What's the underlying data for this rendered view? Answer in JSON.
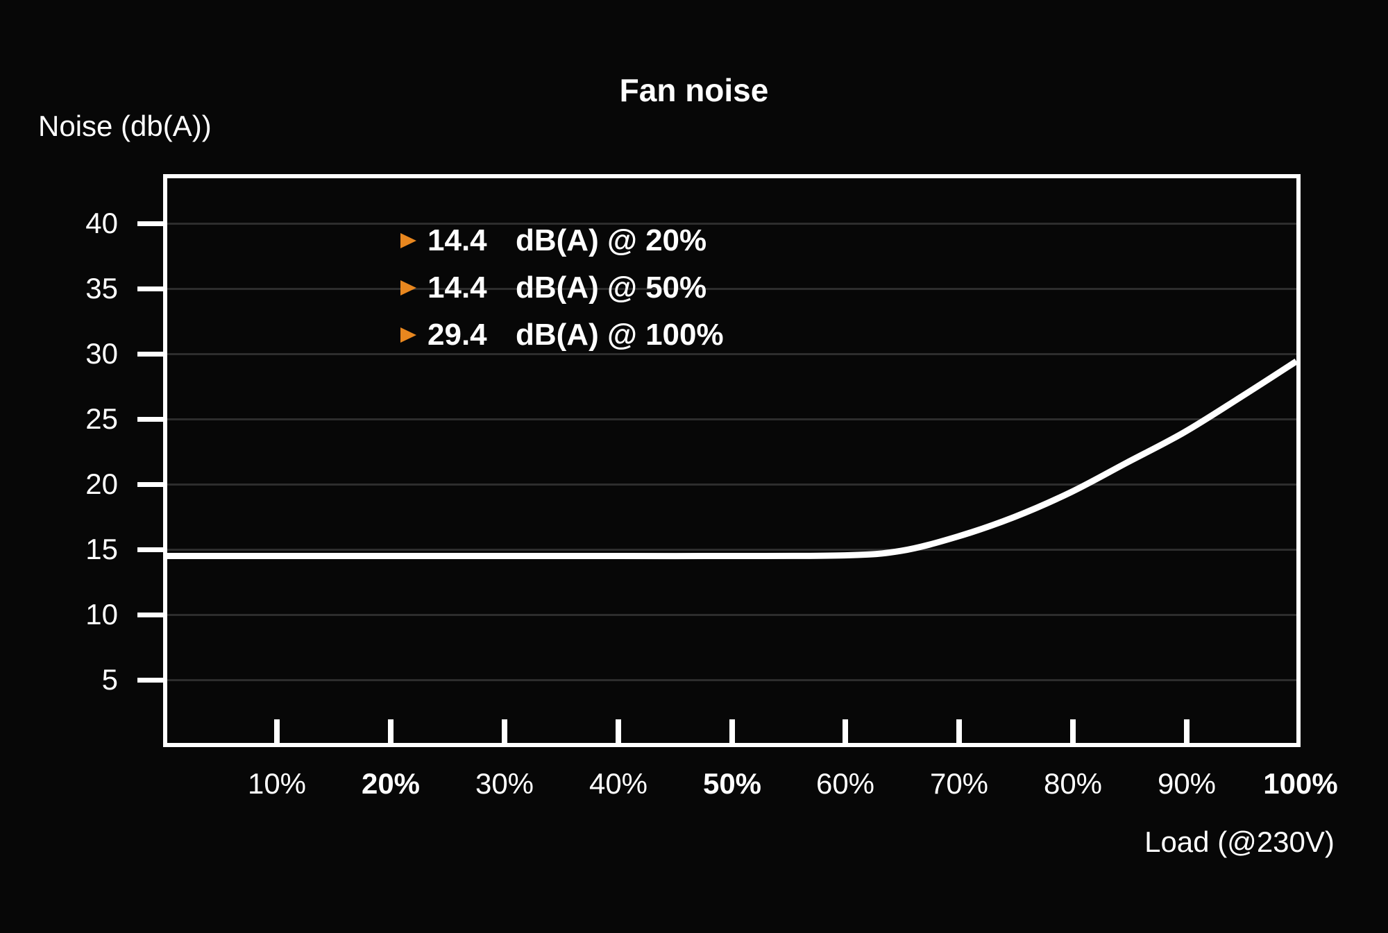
{
  "chart_data": {
    "type": "line",
    "title": "Fan noise",
    "ylabel": "Noise (db(A))",
    "xlabel": "Load (@230V)",
    "x_tick_labels": [
      "10%",
      "20%",
      "30%",
      "40%",
      "50%",
      "60%",
      "70%",
      "80%",
      "90%",
      "100%"
    ],
    "x_tick_values": [
      10,
      20,
      30,
      40,
      50,
      60,
      70,
      80,
      90,
      100
    ],
    "x_tick_bold": [
      "20%",
      "50%",
      "100%"
    ],
    "y_tick_labels": [
      "40",
      "35",
      "30",
      "25",
      "20",
      "15",
      "10",
      "5"
    ],
    "y_tick_values": [
      40,
      35,
      30,
      25,
      20,
      15,
      10,
      5
    ],
    "xlim": [
      0,
      100
    ],
    "ylim": [
      0,
      43.5
    ],
    "grid": "horizontal",
    "legend_position": "top-left-inside",
    "series": [
      {
        "name": "Fan noise",
        "points": [
          [
            0,
            14.4
          ],
          [
            10,
            14.4
          ],
          [
            20,
            14.4
          ],
          [
            30,
            14.4
          ],
          [
            40,
            14.4
          ],
          [
            50,
            14.4
          ],
          [
            60,
            14.45
          ],
          [
            65,
            14.8
          ],
          [
            70,
            15.9
          ],
          [
            75,
            17.4
          ],
          [
            80,
            19.3
          ],
          [
            85,
            21.6
          ],
          [
            90,
            23.9
          ],
          [
            95,
            26.6
          ],
          [
            100,
            29.4
          ]
        ]
      }
    ],
    "annotations": [
      {
        "marker": "orange-triangle-right",
        "value": "14.4",
        "label": "dB(A) @ 20%"
      },
      {
        "marker": "orange-triangle-right",
        "value": "14.4",
        "label": "dB(A) @ 50%"
      },
      {
        "marker": "orange-triangle-right",
        "value": "29.4",
        "label": "dB(A) @ 100%"
      }
    ],
    "colors": {
      "background": "#070707",
      "line": "#ffffff",
      "grid": "#2d2d2d",
      "axis": "#ffffff",
      "accent_orange": "#e8871f",
      "text": "#ffffff"
    }
  }
}
